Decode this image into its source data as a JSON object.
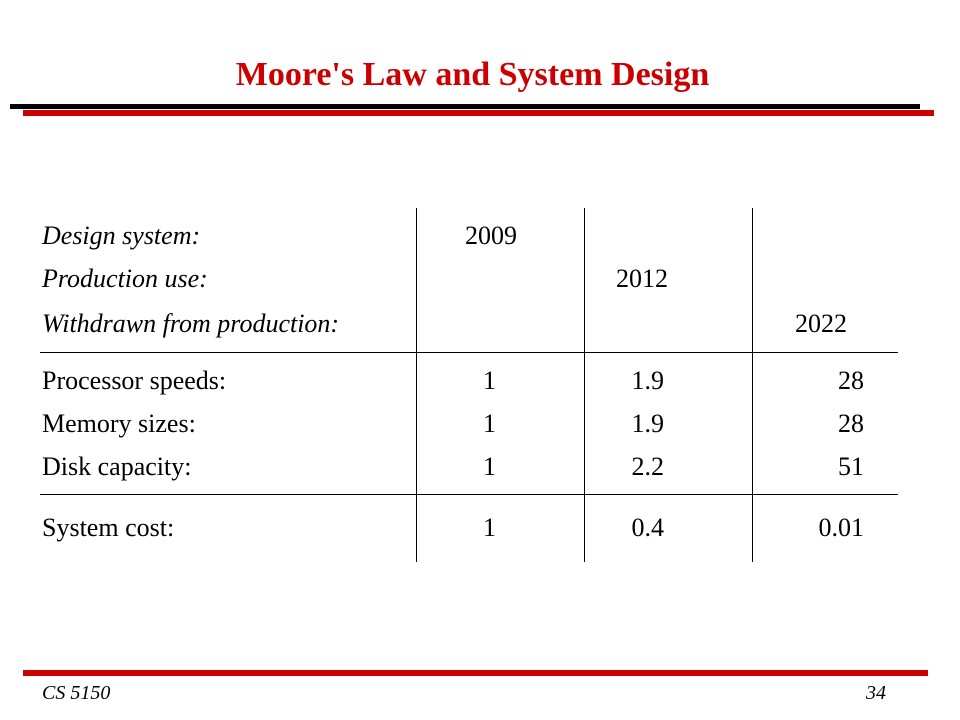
{
  "title": "Moore's Law and System Design",
  "header_rows": [
    {
      "label": "Design system:",
      "value": "2009"
    },
    {
      "label": "Production use:",
      "value": "2012"
    },
    {
      "label": "Withdrawn from production:",
      "value": "2022"
    }
  ],
  "metric_rows": [
    {
      "label": "Processor speeds:",
      "values": [
        "1",
        "1.9",
        "28"
      ]
    },
    {
      "label": "Memory sizes:",
      "values": [
        "1",
        "1.9",
        "28"
      ]
    },
    {
      "label": "Disk capacity:",
      "values": [
        "1",
        "2.2",
        "51"
      ]
    }
  ],
  "cost_row": {
    "label": "System cost:",
    "values": [
      "1",
      "0.4",
      "0.01"
    ]
  },
  "footer": {
    "course": "CS 5150",
    "page": "34"
  },
  "colors": {
    "accent": "#cc0000",
    "text": "#000000",
    "background": "#ffffff"
  }
}
